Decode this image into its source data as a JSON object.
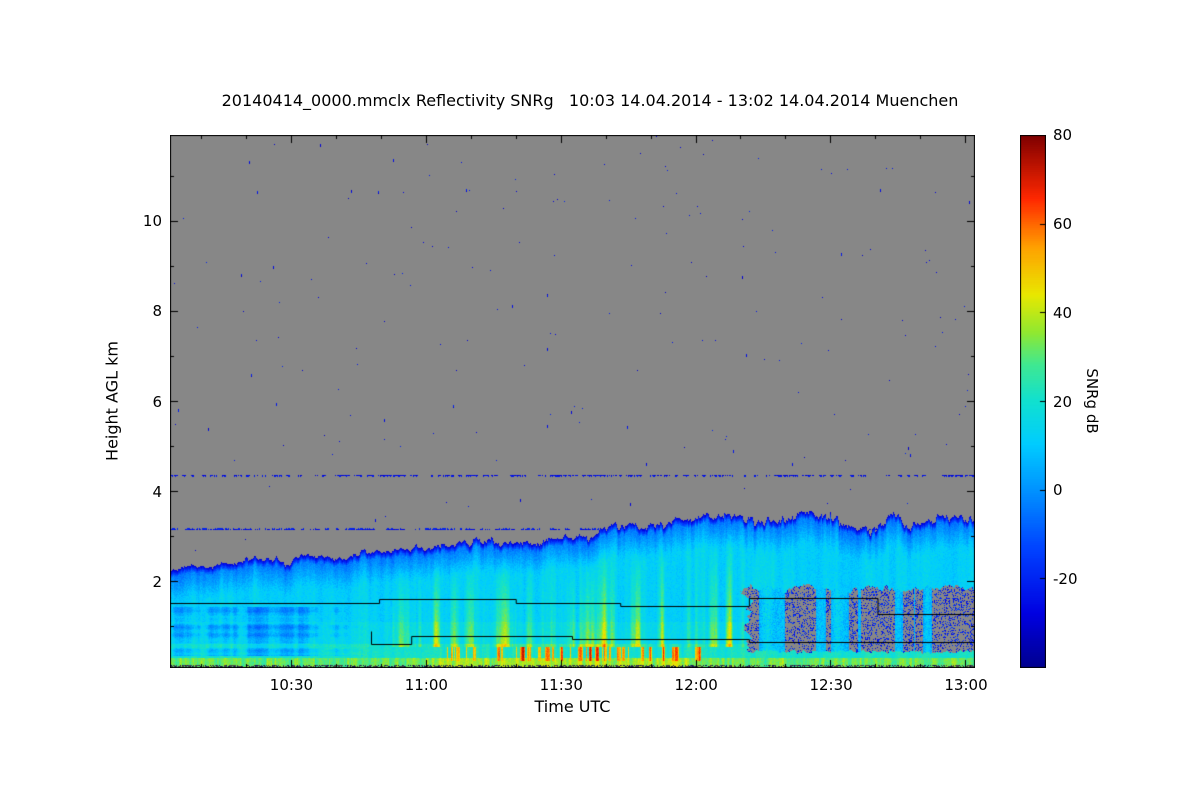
{
  "chart_data": {
    "type": "heatmap",
    "title": "20140414_0000.mmclx Reflectivity SNRg   10:03 14.04.2014 - 13:02 14.04.2014 Muenchen",
    "filename": "20140414_0000.mmclx",
    "quantity": "Reflectivity SNRg",
    "site": "Muenchen",
    "time_start": "10:03 14.04.2014",
    "time_end": "13:02 14.04.2014",
    "xlabel": "Time UTC",
    "ylabel": "Height AGL km",
    "colorbar_label": "SNRg dB",
    "x_tick_labels": [
      "10:30",
      "11:00",
      "11:30",
      "12:00",
      "12:30",
      "13:00"
    ],
    "x_tick_minutes": [
      630,
      660,
      690,
      720,
      750,
      780
    ],
    "x_range_minutes": [
      603,
      782
    ],
    "x_minor_step_minutes": 10,
    "y_tick_values": [
      2,
      4,
      6,
      8,
      10
    ],
    "y_minor_step_km": 1,
    "y_range_km": [
      0.1,
      11.9
    ],
    "colorbar_tick_values": [
      80,
      60,
      40,
      20,
      0,
      -20
    ],
    "colorbar_range_db": [
      -40,
      80
    ],
    "units": "dB",
    "no_data_color": "#878787",
    "colormap_stops": [
      {
        "p": 0.0,
        "color": "#00008f"
      },
      {
        "p": 0.1,
        "color": "#0000e0"
      },
      {
        "p": 0.22,
        "color": "#0040ff"
      },
      {
        "p": 0.33,
        "color": "#0090ff"
      },
      {
        "p": 0.42,
        "color": "#00ccff"
      },
      {
        "p": 0.5,
        "color": "#10e0d0"
      },
      {
        "p": 0.57,
        "color": "#40e890"
      },
      {
        "p": 0.63,
        "color": "#90e830"
      },
      {
        "p": 0.7,
        "color": "#e8e800"
      },
      {
        "p": 0.79,
        "color": "#ffa000"
      },
      {
        "p": 0.88,
        "color": "#ff2800"
      },
      {
        "p": 1.0,
        "color": "#7f0000"
      }
    ],
    "features": {
      "description": "Cloud radar time-height curtain: cloud layer below ~3.5 km with top rising over time, cyan/green body, yellow-green fall streaks, strong orange/red near-surface echoes mid-period, speckled interference line at 4.35 km, dashed line at 3.17 km, gray signal-dropout patch lower right with blue speckles, black melting-layer contour lines near 1.5 km and 0.7 km",
      "cloud_top_km": [
        [
          0,
          2.3
        ],
        [
          0.08,
          2.4
        ],
        [
          0.15,
          2.5
        ],
        [
          0.22,
          2.6
        ],
        [
          0.3,
          2.7
        ],
        [
          0.38,
          2.85
        ],
        [
          0.45,
          2.95
        ],
        [
          0.52,
          3.05
        ],
        [
          0.58,
          3.2
        ],
        [
          0.63,
          3.35
        ],
        [
          0.67,
          3.5
        ],
        [
          0.71,
          3.45
        ],
        [
          0.75,
          3.35
        ],
        [
          0.79,
          3.5
        ],
        [
          0.83,
          3.3
        ],
        [
          0.87,
          3.2
        ],
        [
          0.9,
          3.45
        ],
        [
          0.93,
          3.25
        ],
        [
          0.96,
          3.5
        ],
        [
          1,
          3.4
        ]
      ],
      "interference_lines_km": [
        4.35,
        3.17
      ],
      "surface_band_top_km": 0.3,
      "intense_echo_time_window": [
        0.3,
        0.7
      ],
      "weak_echo_patch": {
        "t_max": 0.24,
        "h_min": 0.35,
        "h_max": 1.45
      },
      "dropout_region": {
        "t_start": 0.72,
        "h_min": 0.45,
        "h_max": 1.85
      },
      "contour_lines_km": [
        [
          [
            0,
            1.52
          ],
          [
            0.26,
            1.52
          ],
          [
            0.26,
            1.6
          ],
          [
            0.43,
            1.6
          ],
          [
            0.43,
            1.52
          ],
          [
            0.56,
            1.52
          ],
          [
            0.56,
            1.46
          ],
          [
            0.72,
            1.46
          ],
          [
            0.72,
            1.62
          ],
          [
            0.88,
            1.62
          ],
          [
            0.88,
            1.28
          ],
          [
            1,
            1.28
          ]
        ],
        [
          [
            0.25,
            0.9
          ],
          [
            0.25,
            0.6
          ],
          [
            0.3,
            0.6
          ],
          [
            0.3,
            0.78
          ],
          [
            0.5,
            0.78
          ],
          [
            0.5,
            0.72
          ],
          [
            0.72,
            0.72
          ],
          [
            0.72,
            0.66
          ],
          [
            1,
            0.66
          ]
        ]
      ]
    }
  }
}
